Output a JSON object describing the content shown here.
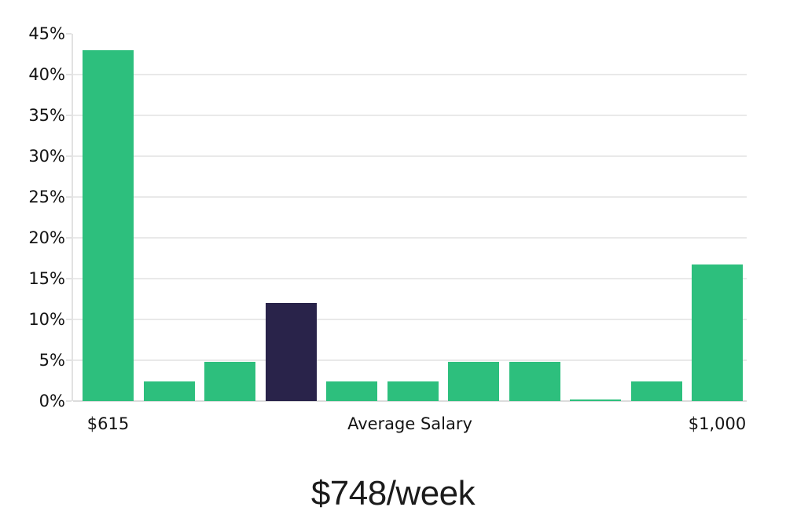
{
  "chart_data": {
    "type": "bar",
    "title": "$748/week",
    "xlabel": "",
    "ylabel": "",
    "ylim": [
      0,
      45
    ],
    "y_unit": "%",
    "grid": "horizontal",
    "legend": "none",
    "y_ticks": [
      {
        "value": 0,
        "label": "0%"
      },
      {
        "value": 5,
        "label": "5%"
      },
      {
        "value": 10,
        "label": "10%"
      },
      {
        "value": 15,
        "label": "15%"
      },
      {
        "value": 20,
        "label": "20%"
      },
      {
        "value": 25,
        "label": "25%"
      },
      {
        "value": 30,
        "label": "30%"
      },
      {
        "value": 35,
        "label": "35%"
      },
      {
        "value": 40,
        "label": "40%"
      },
      {
        "value": 45,
        "label": "45%"
      }
    ],
    "x_labels": [
      {
        "label": "$615",
        "anchor_bar": 0
      },
      {
        "label": "Average Salary",
        "anchor_bar": null
      },
      {
        "label": "$1,000",
        "anchor_bar": 10
      }
    ],
    "bars": [
      {
        "value": 43.0,
        "highlighted": false
      },
      {
        "value": 2.4,
        "highlighted": false
      },
      {
        "value": 4.8,
        "highlighted": false
      },
      {
        "value": 12.0,
        "highlighted": true
      },
      {
        "value": 2.4,
        "highlighted": false
      },
      {
        "value": 2.4,
        "highlighted": false
      },
      {
        "value": 4.8,
        "highlighted": false
      },
      {
        "value": 4.8,
        "highlighted": false
      },
      {
        "value": 0.2,
        "highlighted": false
      },
      {
        "value": 2.4,
        "highlighted": false
      },
      {
        "value": 16.7,
        "highlighted": false
      }
    ],
    "colors": {
      "bar": "#2dbf7d",
      "highlighted_bar": "#29234a",
      "gridline": "#e9e9e9",
      "baseline": "#dcdcdc",
      "axis": "#e2e2e2",
      "label_text": "#141414",
      "title_text": "#1b1b1b"
    }
  }
}
